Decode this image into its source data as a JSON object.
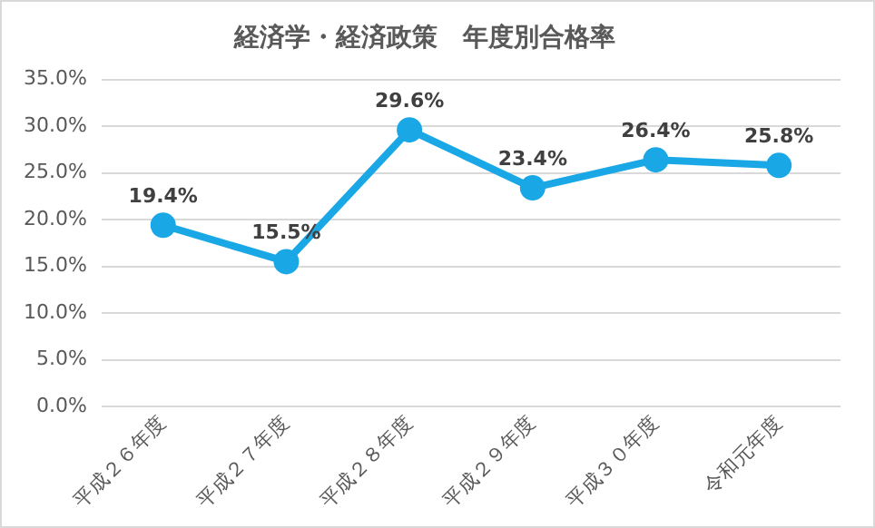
{
  "chart_data": {
    "type": "line",
    "title": "経済学・経済政策　年度別合格率",
    "categories": [
      "平成２６年度",
      "平成２７年度",
      "平成２８年度",
      "平成２９年度",
      "平成３０年度",
      "令和元年度"
    ],
    "values": [
      19.4,
      15.5,
      29.6,
      23.4,
      26.4,
      25.8
    ],
    "value_labels": [
      "19.4%",
      "15.5%",
      "29.6%",
      "23.4%",
      "26.4%",
      "25.8%"
    ],
    "color": "#1aa7e6",
    "ylim": [
      0,
      35
    ],
    "yticks": [
      {
        "value": 0,
        "label": "0.0%"
      },
      {
        "value": 5,
        "label": "5.0%"
      },
      {
        "value": 10,
        "label": "10.0%"
      },
      {
        "value": 15,
        "label": "15.0%"
      },
      {
        "value": 20,
        "label": "20.0%"
      },
      {
        "value": 25,
        "label": "25.0%"
      },
      {
        "value": 30,
        "label": "30.0%"
      },
      {
        "value": 35,
        "label": "35.0%"
      }
    ],
    "grid": "y",
    "marker": "circle",
    "line_style": "solid",
    "legend": false
  }
}
